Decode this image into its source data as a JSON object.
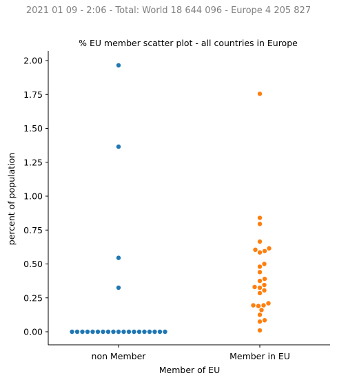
{
  "header": {
    "supertitle": "2021 01 09 - 2:06 - Total: World 18 644 096 - Europe 4 205 827"
  },
  "chart_data": {
    "type": "scatter",
    "title": "% EU member scatter plot - all countries in Europe",
    "xlabel": "Member of EU",
    "ylabel": "percent of population",
    "categories": [
      "non Member",
      "Member in EU"
    ],
    "ylim": [
      -0.1,
      2.06
    ],
    "yticks": [
      0.0,
      0.25,
      0.5,
      0.75,
      1.0,
      1.25,
      1.5,
      1.75,
      2.0
    ],
    "ytick_labels": [
      "0.00",
      "0.25",
      "0.50",
      "0.75",
      "1.00",
      "1.25",
      "1.50",
      "1.75",
      "2.00"
    ],
    "grid": false,
    "series": [
      {
        "category": "non Member",
        "color": "#1f77b4",
        "values": [
          1.965,
          1.365,
          0.545,
          0.325,
          0,
          0,
          0,
          0,
          0,
          0,
          0,
          0,
          0,
          0,
          0,
          0,
          0,
          0,
          0,
          0,
          0,
          0,
          0
        ]
      },
      {
        "category": "Member in EU",
        "color": "#ff7f0e",
        "values": [
          1.755,
          0.84,
          0.795,
          0.665,
          0.615,
          0.605,
          0.595,
          0.585,
          0.5,
          0.48,
          0.44,
          0.39,
          0.375,
          0.345,
          0.33,
          0.325,
          0.305,
          0.285,
          0.21,
          0.195,
          0.195,
          0.19,
          0.16,
          0.125,
          0.085,
          0.075,
          0.01
        ]
      }
    ]
  }
}
